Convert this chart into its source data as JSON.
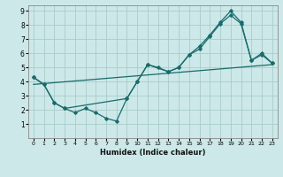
{
  "xlabel": "Humidex (Indice chaleur)",
  "bg_color": "#cce8e8",
  "grid_color": "#aacccc",
  "line_color": "#1a6b6b",
  "xlim": [
    -0.5,
    23.5
  ],
  "ylim": [
    0,
    9.4
  ],
  "xticks": [
    0,
    1,
    2,
    3,
    4,
    5,
    6,
    7,
    8,
    9,
    10,
    11,
    12,
    13,
    14,
    15,
    16,
    17,
    18,
    19,
    20,
    21,
    22,
    23
  ],
  "yticks": [
    1,
    2,
    3,
    4,
    5,
    6,
    7,
    8,
    9
  ],
  "line1_x": [
    0,
    1,
    2,
    3,
    4,
    5,
    6,
    7,
    8,
    9,
    10,
    11,
    12,
    13,
    14,
    15,
    16,
    17,
    18,
    19,
    20,
    21,
    22,
    23
  ],
  "line1_y": [
    4.3,
    3.8,
    2.5,
    2.1,
    1.8,
    2.1,
    1.8,
    1.4,
    1.2,
    2.8,
    4.0,
    5.2,
    5.0,
    4.7,
    5.0,
    5.9,
    6.3,
    7.2,
    8.1,
    8.7,
    8.1,
    5.5,
    5.9,
    5.3
  ],
  "line2_x": [
    0,
    1,
    2,
    3,
    9,
    10,
    11,
    13,
    14,
    15,
    16,
    17,
    18,
    19,
    20,
    21,
    22,
    23
  ],
  "line2_y": [
    4.3,
    3.8,
    2.5,
    2.1,
    2.8,
    4.0,
    5.2,
    4.7,
    5.0,
    5.9,
    6.5,
    7.3,
    8.2,
    9.0,
    8.2,
    5.5,
    6.0,
    5.3
  ],
  "trend_x": [
    0,
    23
  ],
  "trend_y": [
    3.8,
    5.2
  ]
}
